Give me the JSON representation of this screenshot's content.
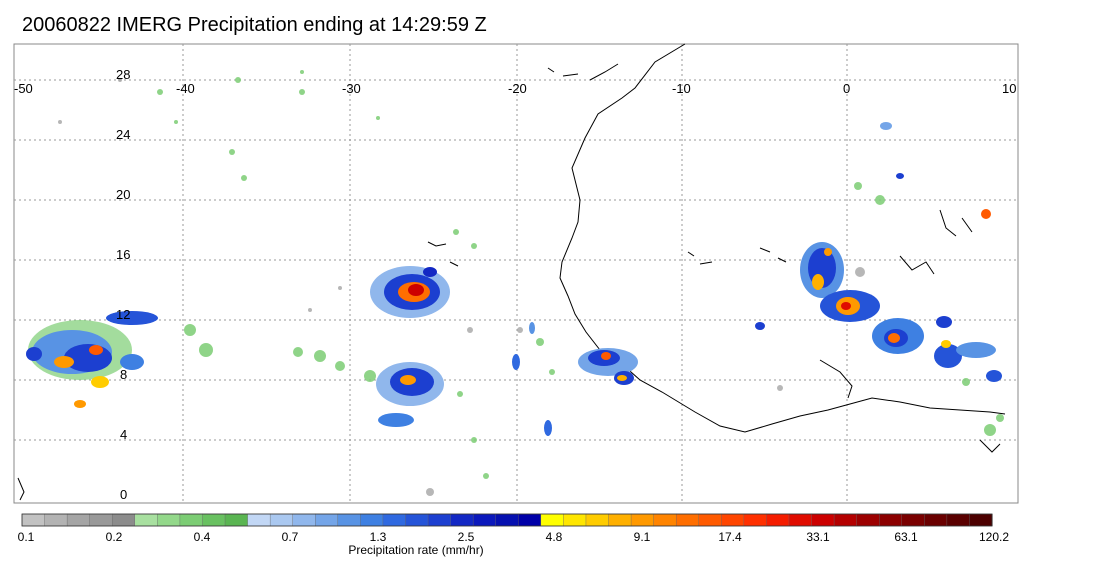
{
  "title": "20060822 IMERG Precipitation ending at 14:29:59 Z",
  "map": {
    "lon_labels": [
      "-50",
      "-40",
      "-30",
      "-20",
      "-10",
      "0",
      "10"
    ],
    "lat_labels": [
      "28",
      "24",
      "20",
      "16",
      "12",
      "8",
      "4",
      "0"
    ]
  },
  "colorbar": {
    "title": "Precipitation rate (mm/hr)",
    "tick_labels": [
      "0.1",
      "0.2",
      "0.4",
      "0.7",
      "1.3",
      "2.5",
      "4.8",
      "9.1",
      "17.4",
      "33.1",
      "63.1",
      "120.2"
    ],
    "colors": [
      "#c2c2c2",
      "#b3b3b3",
      "#a5a5a5",
      "#999999",
      "#8c8c8c",
      "#a8e0a0",
      "#93d88a",
      "#7ccd74",
      "#69c161",
      "#5ab552",
      "#c2d7f5",
      "#aac8f0",
      "#90b7ec",
      "#74a5e8",
      "#5893e4",
      "#3e80e2",
      "#2f69e0",
      "#2554d8",
      "#1c3fd0",
      "#1328c4",
      "#0b18bc",
      "#0610b0",
      "#0000a8",
      "#ffff00",
      "#ffe600",
      "#ffcc00",
      "#ffb000",
      "#ff9900",
      "#ff8400",
      "#ff6e00",
      "#ff5a00",
      "#ff4500",
      "#ff3000",
      "#f51c00",
      "#e00c00",
      "#cc0000",
      "#b40000",
      "#9c0000",
      "#8c0000",
      "#7a0000",
      "#6a0000",
      "#5a0000",
      "#4c0000"
    ]
  }
}
